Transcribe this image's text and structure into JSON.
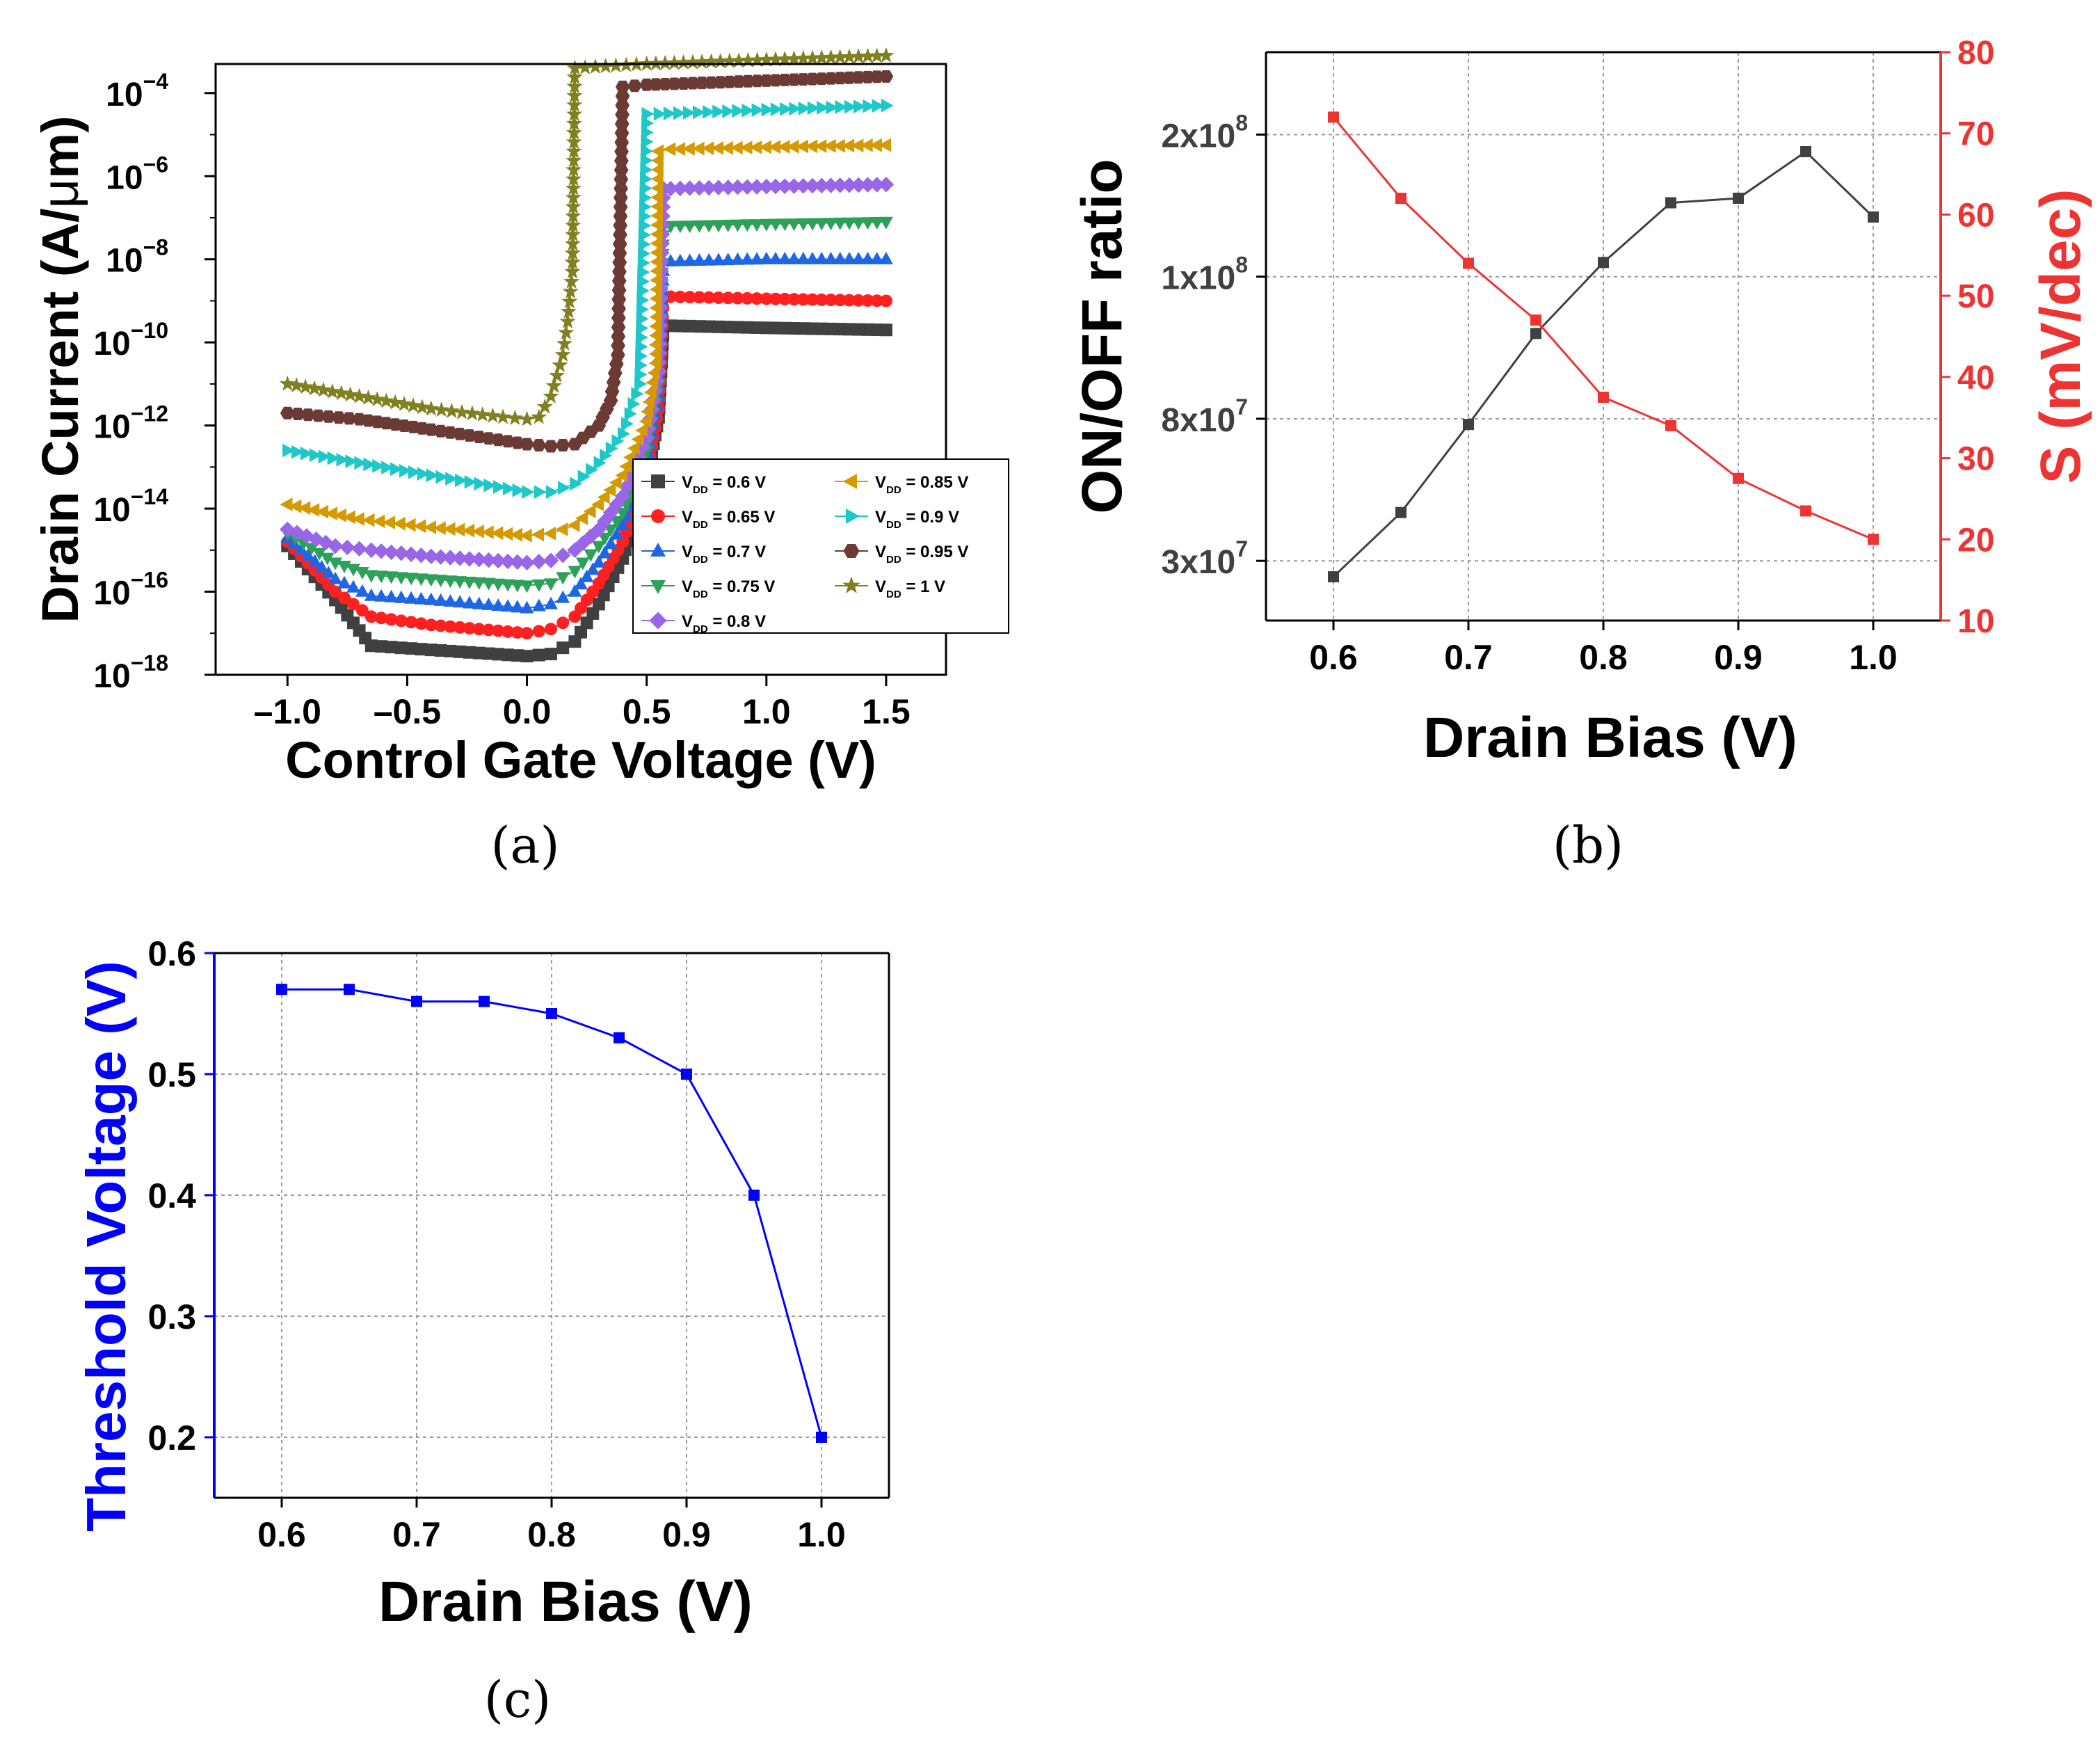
{
  "captions": {
    "a": "(a)",
    "b": "(b)",
    "c": "(c)"
  },
  "colors": {
    "axis": "#000000",
    "grid": "#9a9a9a",
    "onoff": "#404040",
    "swing": "#ee3333",
    "vth": "#0000ff"
  },
  "chart_data": [
    {
      "id": "a",
      "type": "line",
      "xlabel": "Control Gate Voltage (V)",
      "ylabel_parts": [
        "Drain Current (A/",
        "μ",
        "m)"
      ],
      "yscale": "log",
      "xlim": [
        -1.3,
        1.75
      ],
      "ylim_exp": [
        -18,
        -3.3
      ],
      "xticks": [
        -1.0,
        -0.5,
        0.0,
        0.5,
        1.0,
        1.5
      ],
      "xtick_labels": [
        "–1.0",
        "–0.5",
        "0.0",
        "0.5",
        "1.0",
        "1.5"
      ],
      "ytick_exps": [
        -18,
        -16,
        -14,
        -12,
        -10,
        -8,
        -6,
        -4
      ],
      "ytick_base": "10",
      "series": [
        {
          "name": "V_DD = 0.6 V",
          "label_main": "V",
          "label_sub": "DD",
          "label_rest": " = 0.6 V",
          "color": "#404040",
          "marker": "square",
          "x": [
            -1.0,
            -0.8,
            -0.65,
            -0.4,
            0.0,
            0.1,
            0.2,
            0.3,
            0.4,
            0.5,
            0.55,
            0.57,
            0.6,
            1.0,
            1.5
          ],
          "log_y": [
            -14.9,
            -16.2,
            -17.3,
            -17.4,
            -17.55,
            -17.5,
            -17.2,
            -16.3,
            -15.2,
            -13.3,
            -11.8,
            -9.6,
            -9.6,
            -9.65,
            -9.7
          ]
        },
        {
          "name": "V_DD = 0.65 V",
          "label_main": "V",
          "label_sub": "DD",
          "label_rest": " = 0.65 V",
          "color": "#ff2020",
          "marker": "circle",
          "x": [
            -1.0,
            -0.8,
            -0.65,
            -0.4,
            0.0,
            0.1,
            0.2,
            0.3,
            0.4,
            0.5,
            0.55,
            0.57,
            0.6,
            1.0,
            1.5
          ],
          "log_y": [
            -14.8,
            -16.0,
            -16.6,
            -16.8,
            -17.0,
            -16.9,
            -16.6,
            -15.8,
            -14.8,
            -13.2,
            -11.6,
            -8.95,
            -8.9,
            -8.95,
            -9.0
          ]
        },
        {
          "name": "V_DD = 0.7 V",
          "label_main": "V",
          "label_sub": "DD",
          "label_rest": " = 0.7 V",
          "color": "#1f66e5",
          "marker": "triangle-up",
          "x": [
            -1.0,
            -0.8,
            -0.65,
            -0.4,
            0.0,
            0.1,
            0.2,
            0.3,
            0.4,
            0.5,
            0.55,
            0.57,
            0.6,
            1.0,
            1.5
          ],
          "log_y": [
            -14.7,
            -15.7,
            -16.1,
            -16.2,
            -16.4,
            -16.3,
            -16.0,
            -15.3,
            -14.4,
            -12.9,
            -11.3,
            -8.05,
            -8.05,
            -8.0,
            -8.0
          ]
        },
        {
          "name": "V_DD = 0.75 V",
          "label_main": "V",
          "label_sub": "DD",
          "label_rest": " = 0.75 V",
          "color": "#2da05a",
          "marker": "triangle-down",
          "x": [
            -1.0,
            -0.8,
            -0.65,
            -0.4,
            0.0,
            0.1,
            0.2,
            0.3,
            0.4,
            0.5,
            0.55,
            0.57,
            0.6,
            1.0,
            1.5
          ],
          "log_y": [
            -14.6,
            -15.3,
            -15.6,
            -15.7,
            -15.85,
            -15.8,
            -15.5,
            -14.9,
            -14.1,
            -12.6,
            -11.0,
            -7.2,
            -7.2,
            -7.15,
            -7.1
          ]
        },
        {
          "name": "V_DD = 0.8 V",
          "label_main": "V",
          "label_sub": "DD",
          "label_rest": " = 0.8 V",
          "color": "#9966e8",
          "marker": "diamond",
          "x": [
            -1.0,
            -0.8,
            -0.65,
            -0.4,
            0.0,
            0.1,
            0.2,
            0.3,
            0.4,
            0.5,
            0.55,
            0.57,
            0.6,
            1.0,
            1.5
          ],
          "log_y": [
            -14.5,
            -14.9,
            -15.0,
            -15.15,
            -15.3,
            -15.25,
            -15.0,
            -14.5,
            -13.7,
            -12.3,
            -10.7,
            -6.3,
            -6.3,
            -6.25,
            -6.2
          ]
        },
        {
          "name": "V_DD = 0.85 V",
          "label_main": "V",
          "label_sub": "DD",
          "label_rest": " = 0.85 V",
          "color": "#d49a00",
          "marker": "triangle-left",
          "x": [
            -1.0,
            -0.7,
            -0.4,
            0.0,
            0.1,
            0.2,
            0.3,
            0.4,
            0.5,
            0.54,
            0.55,
            0.6,
            1.0,
            1.5
          ],
          "log_y": [
            -13.9,
            -14.25,
            -14.45,
            -14.65,
            -14.6,
            -14.4,
            -13.9,
            -13.2,
            -11.9,
            -10.5,
            -5.4,
            -5.35,
            -5.3,
            -5.25
          ]
        },
        {
          "name": "V_DD = 0.9 V",
          "label_main": "V",
          "label_sub": "DD",
          "label_rest": " = 0.9 V",
          "color": "#1ec8c8",
          "marker": "triangle-right",
          "x": [
            -1.0,
            -0.7,
            -0.4,
            0.0,
            0.1,
            0.2,
            0.3,
            0.4,
            0.47,
            0.5,
            0.55,
            1.0,
            1.5
          ],
          "log_y": [
            -12.6,
            -12.9,
            -13.2,
            -13.6,
            -13.6,
            -13.4,
            -12.9,
            -12.2,
            -11.0,
            -4.5,
            -4.5,
            -4.4,
            -4.3
          ]
        },
        {
          "name": "V_DD = 0.95 V",
          "label_main": "V",
          "label_sub": "DD",
          "label_rest": " = 0.95 V",
          "color": "#6b3a35",
          "marker": "hexagon",
          "x": [
            -1.0,
            -0.7,
            -0.4,
            0.0,
            0.1,
            0.2,
            0.3,
            0.35,
            0.38,
            0.4,
            0.5,
            1.0,
            1.5
          ],
          "log_y": [
            -11.7,
            -11.85,
            -12.1,
            -12.45,
            -12.5,
            -12.45,
            -12.0,
            -11.4,
            -10.3,
            -3.85,
            -3.8,
            -3.7,
            -3.6
          ]
        },
        {
          "name": "V_DD = 1 V",
          "label_main": "V",
          "label_sub": "DD",
          "label_rest": " = 1 V",
          "color": "#808020",
          "marker": "star",
          "x": [
            -1.0,
            -0.7,
            -0.4,
            -0.1,
            0.0,
            0.05,
            0.1,
            0.15,
            0.17,
            0.19,
            0.2,
            0.5,
            1.0,
            1.5
          ],
          "log_y": [
            -11.0,
            -11.3,
            -11.6,
            -11.8,
            -11.85,
            -11.8,
            -11.3,
            -10.3,
            -9.5,
            -8.3,
            -3.4,
            -3.3,
            -3.2,
            -3.1
          ]
        }
      ]
    },
    {
      "id": "b",
      "type": "line",
      "xlabel": "Drain Bias (V)",
      "ylabel": "ON/OFF ratio",
      "ylabel2": "S (mV/dec)",
      "xlim": [
        0.55,
        1.05
      ],
      "xticks": [
        0.6,
        0.7,
        0.8,
        0.9,
        1.0
      ],
      "xtick_labels": [
        "0.6",
        "0.7",
        "0.8",
        "0.9",
        "1.0"
      ],
      "y_left_ticks": [
        {
          "mant": "3x10",
          "exp": "7",
          "pos": 0.105
        },
        {
          "mant": "8x10",
          "exp": "7",
          "pos": 0.355
        },
        {
          "mant": "1x10",
          "exp": "8",
          "pos": 0.605
        },
        {
          "mant": "2x10",
          "exp": "8",
          "pos": 0.855
        }
      ],
      "ylim2": [
        10,
        80
      ],
      "y2ticks": [
        10,
        20,
        30,
        40,
        50,
        60,
        70,
        80
      ],
      "series": [
        {
          "name": "ON/OFF ratio",
          "axis": "left",
          "color": "#404040",
          "x": [
            0.6,
            0.65,
            0.7,
            0.75,
            0.8,
            0.85,
            0.9,
            0.95,
            1.0
          ],
          "y_pos": [
            0.077,
            0.19,
            0.345,
            0.505,
            0.63,
            0.735,
            0.743,
            0.825,
            0.71
          ]
        },
        {
          "name": "S",
          "axis": "right",
          "color": "#ee3333",
          "x": [
            0.6,
            0.65,
            0.7,
            0.75,
            0.8,
            0.85,
            0.9,
            0.95,
            1.0
          ],
          "y": [
            72,
            62,
            54,
            47,
            37.5,
            34,
            27.5,
            23.5,
            20
          ]
        }
      ]
    },
    {
      "id": "c",
      "type": "line",
      "xlabel": "Drain Bias (V)",
      "ylabel": "Threshold Voltage (V)",
      "xlim": [
        0.55,
        1.05
      ],
      "ylim": [
        0.15,
        0.6
      ],
      "xticks": [
        0.6,
        0.7,
        0.8,
        0.9,
        1.0
      ],
      "xtick_labels": [
        "0.6",
        "0.7",
        "0.8",
        "0.9",
        "1.0"
      ],
      "yticks": [
        0.2,
        0.3,
        0.4,
        0.5,
        0.6
      ],
      "ytick_labels": [
        "0.2",
        "0.3",
        "0.4",
        "0.5",
        "0.6"
      ],
      "series": [
        {
          "name": "Threshold Voltage",
          "color": "#0000ff",
          "x": [
            0.6,
            0.65,
            0.7,
            0.75,
            0.8,
            0.85,
            0.9,
            0.95,
            1.0
          ],
          "y": [
            0.57,
            0.57,
            0.56,
            0.56,
            0.55,
            0.53,
            0.5,
            0.4,
            0.2
          ]
        }
      ]
    }
  ]
}
